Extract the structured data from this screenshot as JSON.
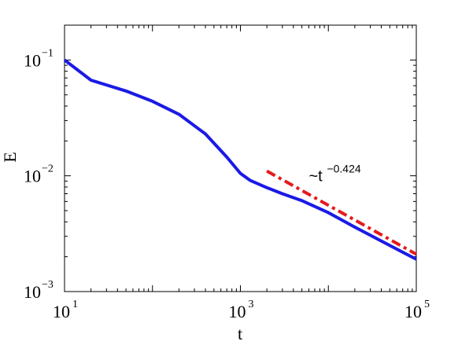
{
  "chart_data": {
    "type": "line",
    "xscale": "log",
    "yscale": "log",
    "xlim": [
      10,
      100000
    ],
    "ylim": [
      0.001,
      0.2
    ],
    "xlabel": "t",
    "ylabel": "E",
    "grid": false,
    "legend": "none",
    "x_ticks": [
      {
        "base": "10",
        "exp": "1",
        "value": 10
      },
      {
        "base": "10",
        "exp": "3",
        "value": 1000
      },
      {
        "base": "10",
        "exp": "5",
        "value": 100000
      }
    ],
    "y_ticks": [
      {
        "base": "10",
        "exp": "−3",
        "value": 0.001
      },
      {
        "base": "10",
        "exp": "−2",
        "value": 0.01
      },
      {
        "base": "10",
        "exp": "−1",
        "value": 0.1
      }
    ],
    "series": [
      {
        "color": "#1a1ae6",
        "style": "solid",
        "x": [
          10,
          20,
          50,
          100,
          200,
          400,
          700,
          1000,
          1300,
          2000,
          3000,
          5000,
          10000,
          20000,
          50000,
          100000
        ],
        "y": [
          0.1,
          0.067,
          0.054,
          0.044,
          0.034,
          0.023,
          0.0145,
          0.0105,
          0.0091,
          0.0079,
          0.007,
          0.0061,
          0.0048,
          0.0036,
          0.0025,
          0.0019
        ]
      },
      {
        "color": "#e61a1a",
        "style": "dash-dot",
        "x": [
          2000,
          100000
        ],
        "y": [
          0.011,
          0.0021
        ]
      }
    ],
    "annotations": [
      {
        "base": "~t",
        "exp": "−0.424",
        "x": 6000,
        "y": 0.009
      }
    ]
  }
}
